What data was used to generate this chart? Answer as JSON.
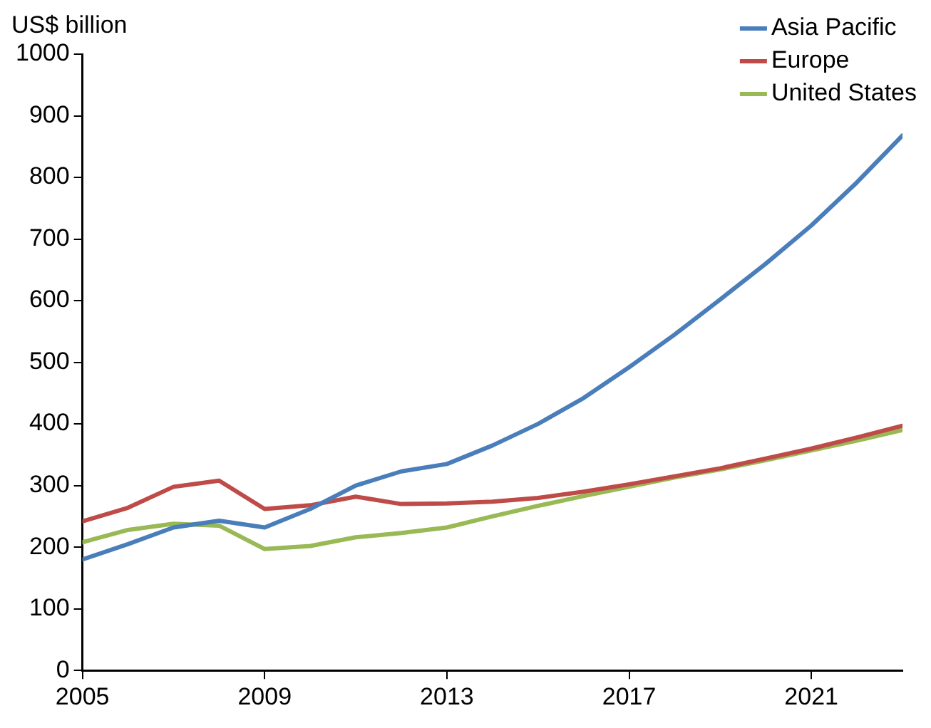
{
  "chart_data": {
    "type": "line",
    "ylabel": "US$ billion",
    "x": [
      2005,
      2006,
      2007,
      2008,
      2009,
      2010,
      2011,
      2012,
      2013,
      2014,
      2015,
      2016,
      2017,
      2018,
      2019,
      2020,
      2021,
      2022,
      2023
    ],
    "series": [
      {
        "name": "Asia Pacific",
        "color": "#4a7ebb",
        "values": [
          180,
          205,
          232,
          243,
          232,
          262,
          300,
          323,
          335,
          365,
          400,
          442,
          492,
          545,
          602,
          660,
          722,
          792,
          868
        ]
      },
      {
        "name": "Europe",
        "color": "#be4b48",
        "values": [
          242,
          264,
          298,
          308,
          262,
          268,
          282,
          270,
          271,
          274,
          280,
          290,
          302,
          315,
          328,
          344,
          360,
          378,
          397
        ]
      },
      {
        "name": "United States",
        "color": "#98b954",
        "values": [
          208,
          228,
          238,
          235,
          197,
          202,
          216,
          223,
          232,
          250,
          267,
          283,
          298,
          313,
          326,
          341,
          357,
          373,
          390
        ]
      }
    ],
    "xlim": [
      2005,
      2023
    ],
    "xticks": [
      2005,
      2009,
      2013,
      2017,
      2021
    ],
    "ylim": [
      0,
      1000
    ],
    "yticks": [
      0,
      100,
      200,
      300,
      400,
      500,
      600,
      700,
      800,
      900,
      1000
    ],
    "grid": false,
    "legend": "top right",
    "marker": "none",
    "line_style": "solid"
  }
}
